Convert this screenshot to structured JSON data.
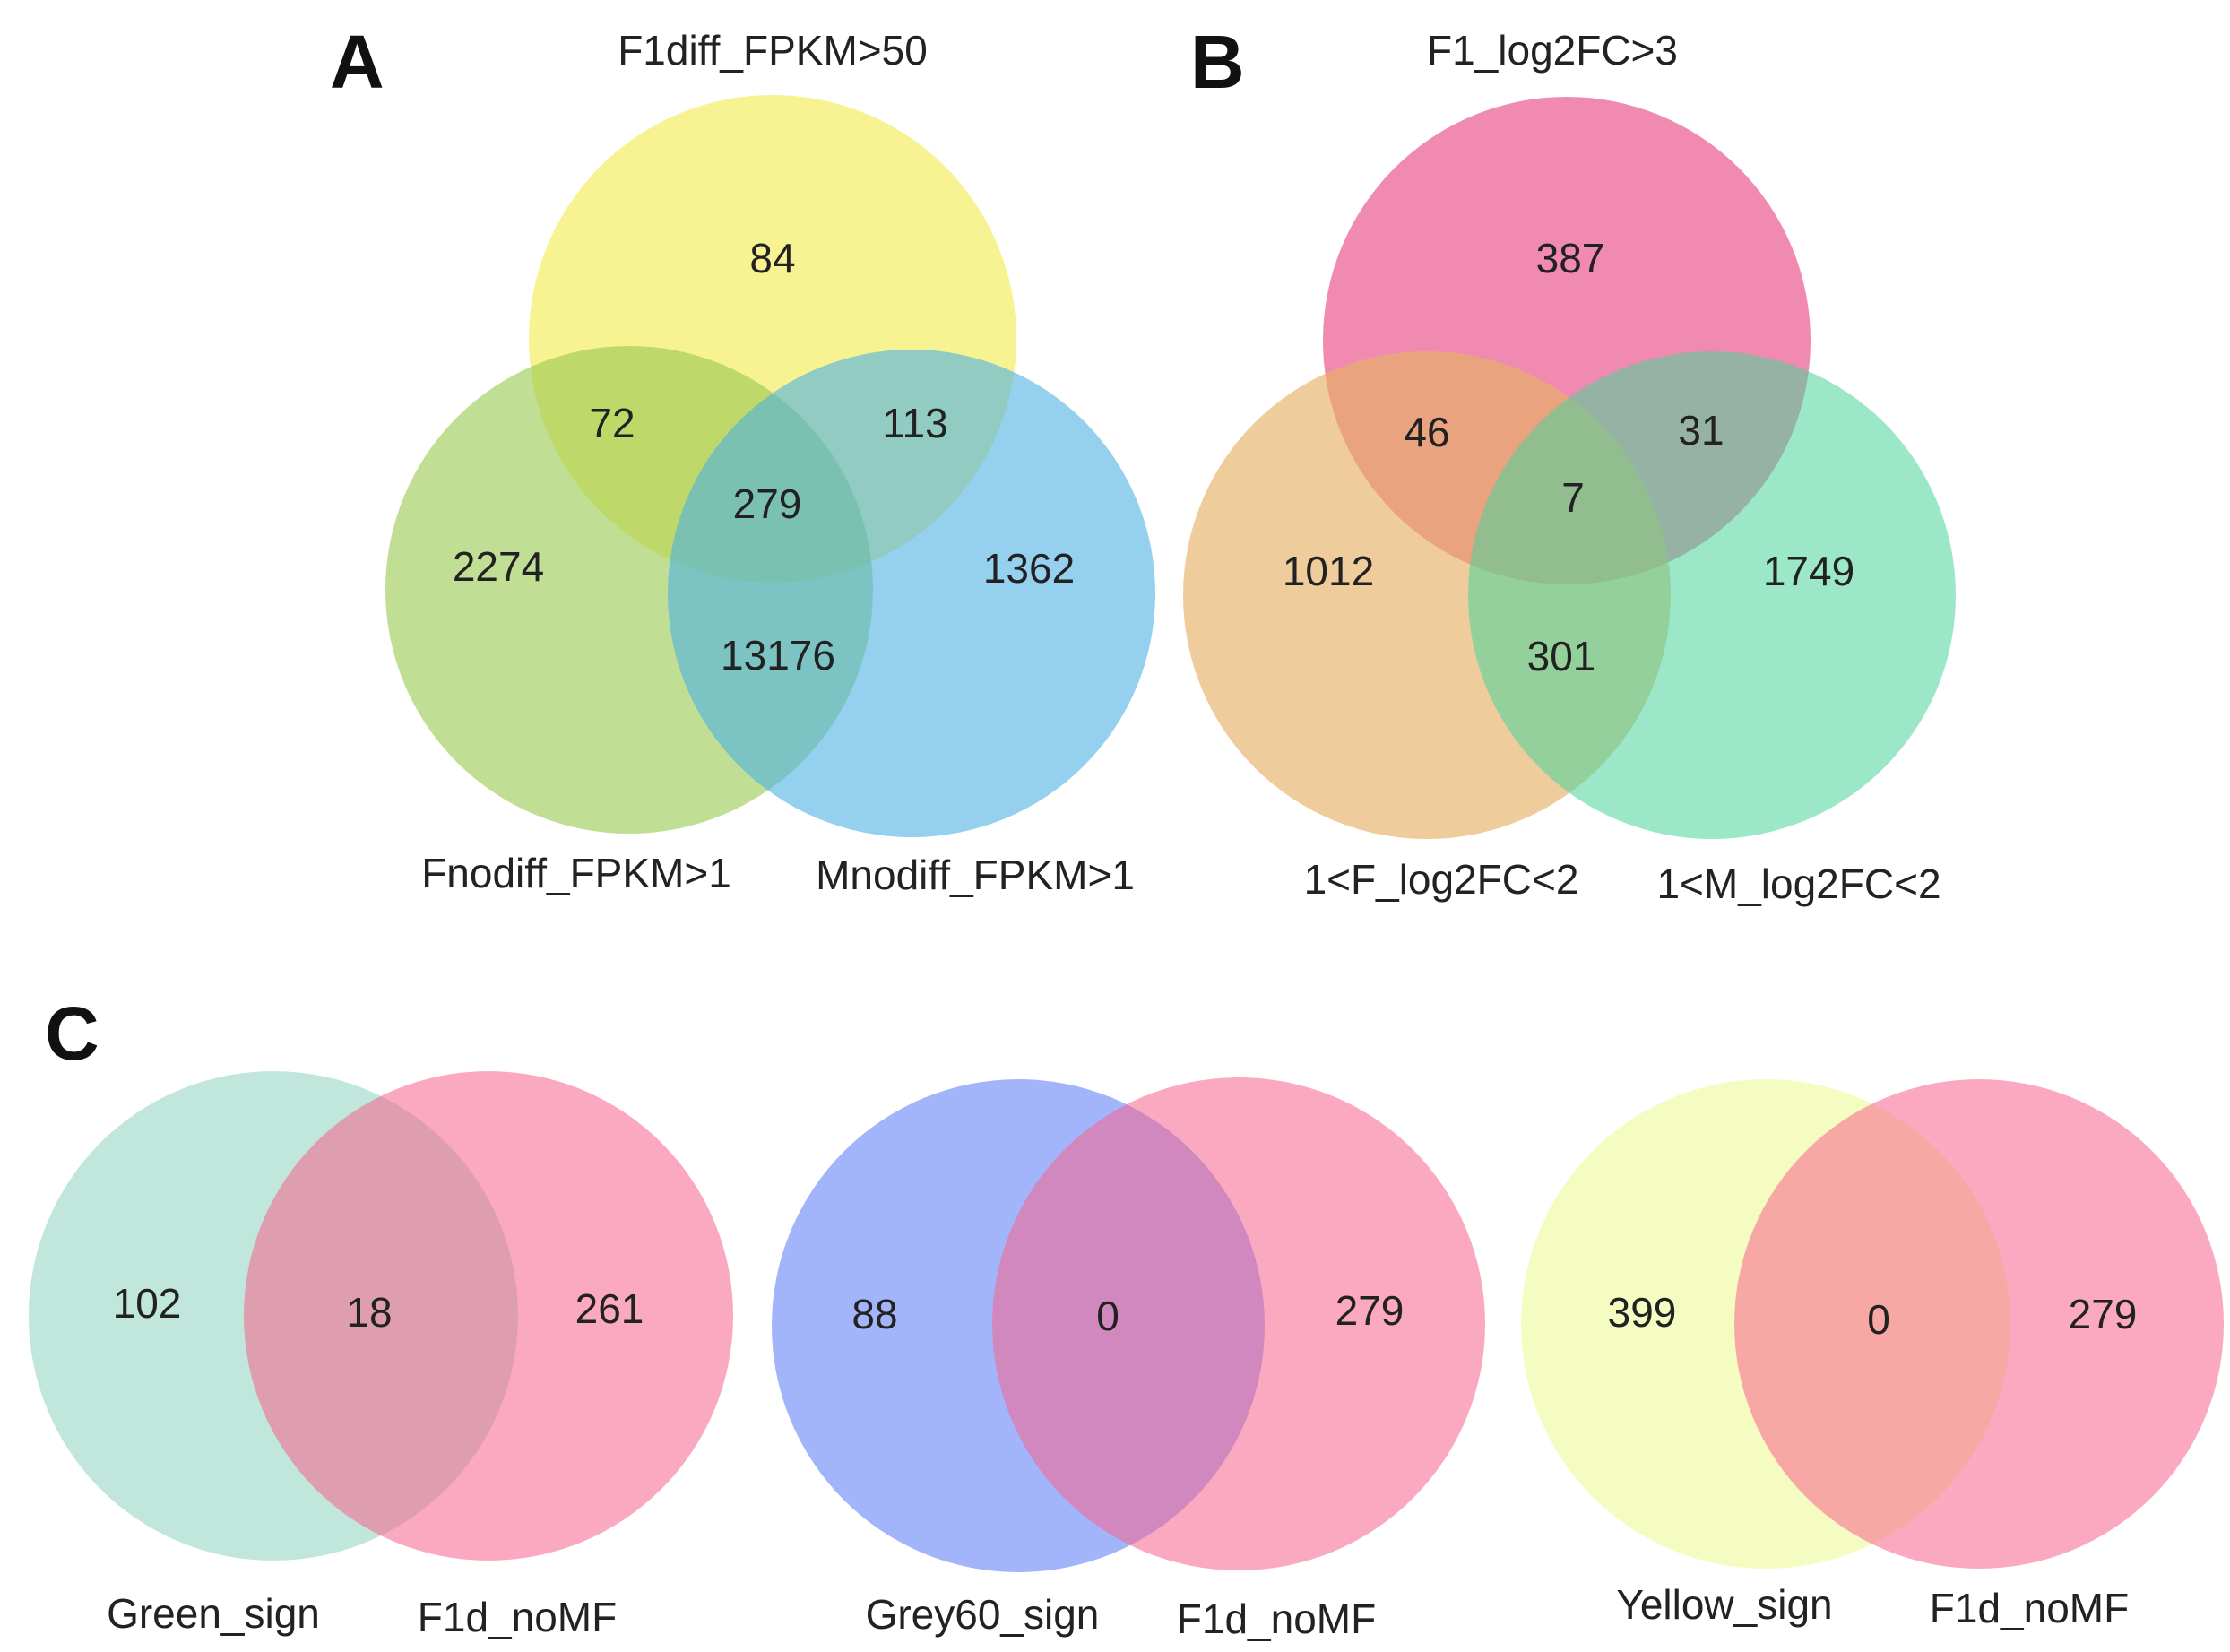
{
  "panels": {
    "A": {
      "letter": "A",
      "sets": [
        {
          "name": "F1diff_FPKM>50",
          "color": "#f2ea4a"
        },
        {
          "name": "Fnodiff_FPKM>1",
          "color": "#98c84e"
        },
        {
          "name": "Mnodiff_FPKM>1",
          "color": "#4fb1e3"
        }
      ],
      "counts": {
        "only_1": "84",
        "only_2": "2274",
        "only_3": "1362",
        "r12": "72",
        "r13": "113",
        "r23": "13176",
        "r123": "279"
      }
    },
    "B": {
      "letter": "B",
      "sets": [
        {
          "name": "F1_log2FC>3",
          "color": "#e94b86"
        },
        {
          "name": "1<F_log2FC<2",
          "color": "#e6b066"
        },
        {
          "name": "1<M_log2FC<2",
          "color": "#48d49a"
        }
      ],
      "counts": {
        "only_1": "387",
        "only_2": "1012",
        "only_3": "1749",
        "r12": "46",
        "r13": "31",
        "r23": "301",
        "r123": "7"
      }
    },
    "C": {
      "letter": "C",
      "pairs": [
        {
          "left_name": "Green_sign",
          "right_name": "F1d_noMF",
          "left_color": "#8ed1c0",
          "right_color": "#f7628c",
          "left_only": "102",
          "both": "18",
          "right_only": "261"
        },
        {
          "left_name": "Grey60_sign",
          "right_name": "F1d_noMF",
          "left_color": "#5879f5",
          "right_color": "#f7628c",
          "left_only": "88",
          "both": "0",
          "right_only": "279"
        },
        {
          "left_name": "Yellow_sign",
          "right_name": "F1d_noMF",
          "left_color": "#edf990",
          "right_color": "#f7628c",
          "left_only": "399",
          "both": "0",
          "right_only": "279"
        }
      ]
    }
  }
}
